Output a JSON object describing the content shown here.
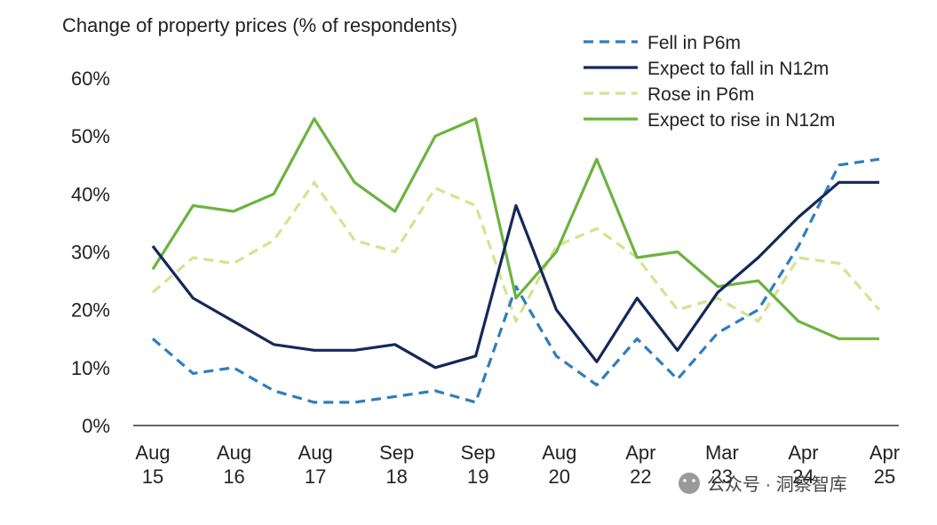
{
  "chart_data": {
    "type": "line",
    "title": "Change of property prices (% of respondents)",
    "xlabel": "",
    "ylabel": "",
    "ylim": [
      0,
      60
    ],
    "yticks": [
      "0%",
      "10%",
      "20%",
      "30%",
      "40%",
      "50%",
      "60%"
    ],
    "x_tick_labels": [
      {
        "line1": "Aug",
        "line2": "15"
      },
      {
        "line1": "Aug",
        "line2": "16"
      },
      {
        "line1": "Aug",
        "line2": "17"
      },
      {
        "line1": "Sep",
        "line2": "18"
      },
      {
        "line1": "Sep",
        "line2": "19"
      },
      {
        "line1": "Aug",
        "line2": "20"
      },
      {
        "line1": "Apr",
        "line2": "22"
      },
      {
        "line1": "Mar",
        "line2": "23"
      },
      {
        "line1": "Apr",
        "line2": "24"
      },
      {
        "line1": "Apr",
        "line2": "25"
      }
    ],
    "legend_position": "top-right",
    "series": [
      {
        "name": "Fell in P6m",
        "color": "#2f7dbd",
        "dash": true,
        "values": [
          15,
          9,
          10,
          6,
          4,
          4,
          5,
          6,
          4,
          24,
          12,
          7,
          15,
          8,
          16,
          20,
          31,
          45,
          46
        ]
      },
      {
        "name": "Expect to fall in N12m",
        "color": "#14285a",
        "dash": false,
        "values": [
          31,
          22,
          18,
          14,
          13,
          13,
          14,
          10,
          12,
          38,
          20,
          11,
          22,
          13,
          23,
          29,
          36,
          42,
          42
        ]
      },
      {
        "name": "Rose in P6m",
        "color": "#d3e48f",
        "dash": true,
        "values": [
          23,
          29,
          28,
          32,
          42,
          32,
          30,
          41,
          38,
          18,
          31,
          34,
          29,
          20,
          22,
          18,
          29,
          28,
          20
        ]
      },
      {
        "name": "Expect to rise in N12m",
        "color": "#6cb33f",
        "dash": false,
        "values": [
          27,
          38,
          37,
          40,
          53,
          42,
          37,
          50,
          53,
          22,
          30,
          46,
          29,
          30,
          24,
          25,
          18,
          15,
          15
        ]
      }
    ]
  },
  "watermark": {
    "text": "公众号 · 洞察智库"
  }
}
